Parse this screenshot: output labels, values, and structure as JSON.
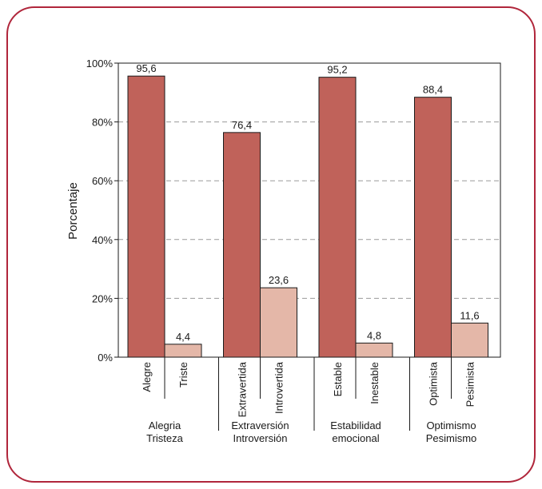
{
  "chart_data": {
    "type": "bar",
    "ylabel": "Porcentaje",
    "ylim": [
      0,
      100
    ],
    "yticks": [
      "0%",
      "20%",
      "40%",
      "60%",
      "80%",
      "100%"
    ],
    "grid": "horizontal-dashed",
    "groups": [
      {
        "label_lines": [
          "Alegria",
          "Tristeza"
        ],
        "bars": [
          {
            "category": "Alegre",
            "value": 95.6,
            "value_label": "95,6",
            "kind": "primary"
          },
          {
            "category": "Triste",
            "value": 4.4,
            "value_label": "4,4",
            "kind": "secondary"
          }
        ]
      },
      {
        "label_lines": [
          "Extraversión",
          "Introversión"
        ],
        "bars": [
          {
            "category": "Extravertida",
            "value": 76.4,
            "value_label": "76,4",
            "kind": "primary"
          },
          {
            "category": "Introvertida",
            "value": 23.6,
            "value_label": "23,6",
            "kind": "secondary"
          }
        ]
      },
      {
        "label_lines": [
          "Estabilidad",
          "emocional"
        ],
        "bars": [
          {
            "category": "Estable",
            "value": 95.2,
            "value_label": "95,2",
            "kind": "primary"
          },
          {
            "category": "Inestable",
            "value": 4.8,
            "value_label": "4,8",
            "kind": "secondary"
          }
        ]
      },
      {
        "label_lines": [
          "Optimismo",
          "Pesimismo"
        ],
        "bars": [
          {
            "category": "Optimista",
            "value": 88.4,
            "value_label": "88,4",
            "kind": "primary"
          },
          {
            "category": "Pesimista",
            "value": 11.6,
            "value_label": "11,6",
            "kind": "secondary"
          }
        ]
      }
    ]
  },
  "colors": {
    "frame_border": "#b0263b",
    "primary_bar": "#c0625a",
    "secondary_bar": "#e4b7a8",
    "grid": "#9a9a9a",
    "axis": "#1a1a1a"
  }
}
